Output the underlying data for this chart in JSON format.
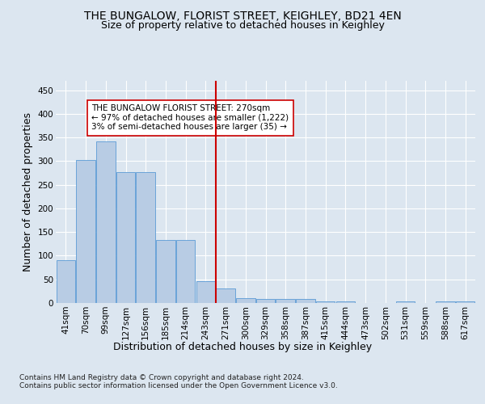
{
  "title": "THE BUNGALOW, FLORIST STREET, KEIGHLEY, BD21 4EN",
  "subtitle": "Size of property relative to detached houses in Keighley",
  "xlabel": "Distribution of detached houses by size in Keighley",
  "ylabel": "Number of detached properties",
  "bar_labels": [
    "41sqm",
    "70sqm",
    "99sqm",
    "127sqm",
    "156sqm",
    "185sqm",
    "214sqm",
    "243sqm",
    "271sqm",
    "300sqm",
    "329sqm",
    "358sqm",
    "387sqm",
    "415sqm",
    "444sqm",
    "473sqm",
    "502sqm",
    "531sqm",
    "559sqm",
    "588sqm",
    "617sqm"
  ],
  "bar_values": [
    91,
    303,
    341,
    277,
    277,
    133,
    133,
    47,
    31,
    10,
    8,
    8,
    8,
    4,
    4,
    0,
    0,
    3,
    0,
    3,
    3
  ],
  "bar_color": "#b8cce4",
  "bar_edge_color": "#5b9bd5",
  "highlight_index": 8,
  "highlight_color": "#cc0000",
  "annotation_text": "THE BUNGALOW FLORIST STREET: 270sqm\n← 97% of detached houses are smaller (1,222)\n3% of semi-detached houses are larger (35) →",
  "annotation_box_color": "#ffffff",
  "annotation_box_edge_color": "#cc0000",
  "footer_text": "Contains HM Land Registry data © Crown copyright and database right 2024.\nContains public sector information licensed under the Open Government Licence v3.0.",
  "ylim": [
    0,
    470
  ],
  "yticks": [
    0,
    50,
    100,
    150,
    200,
    250,
    300,
    350,
    400,
    450
  ],
  "background_color": "#dce6f0",
  "plot_bg_color": "#dce6f0",
  "grid_color": "#ffffff",
  "title_fontsize": 10,
  "subtitle_fontsize": 9,
  "axis_label_fontsize": 9,
  "tick_fontsize": 7.5,
  "annotation_fontsize": 7.5,
  "footer_fontsize": 6.5
}
